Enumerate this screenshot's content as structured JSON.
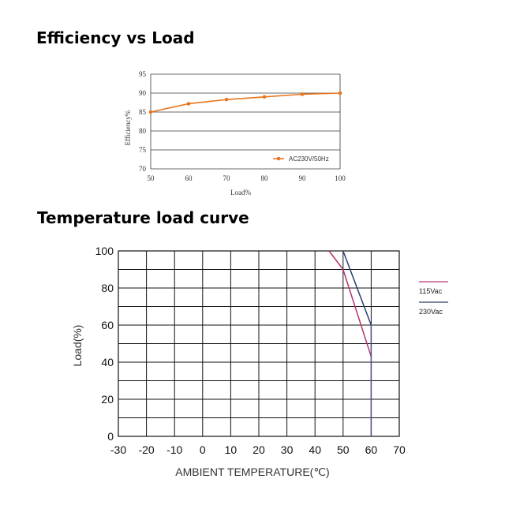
{
  "headings": {
    "efficiency": "Efficiency vs Load",
    "temperature": "Temperature load curve"
  },
  "chart_data": [
    {
      "type": "line",
      "title": "Efficiency vs Load",
      "xlabel": "Load%",
      "ylabel": "Efficiency%",
      "xlim": [
        50,
        100
      ],
      "ylim": [
        70,
        95
      ],
      "xticks": [
        50,
        60,
        70,
        80,
        90,
        100
      ],
      "yticks": [
        70,
        75,
        80,
        85,
        90,
        95
      ],
      "grid": "horizontal",
      "legend_position": "bottom-right",
      "series": [
        {
          "name": "AC230V/50Hz",
          "color": "#e8761e",
          "x": [
            50,
            60,
            70,
            80,
            90,
            100
          ],
          "y": [
            85,
            87.2,
            88.3,
            89,
            89.7,
            90
          ]
        }
      ]
    },
    {
      "type": "line",
      "title": "Temperature load curve",
      "xlabel": "AMBIENT TEMPERATURE(℃)",
      "ylabel": "Load(%)",
      "xlim": [
        -30,
        70
      ],
      "ylim": [
        0,
        100
      ],
      "xticks": [
        -30,
        -20,
        -10,
        0,
        10,
        20,
        30,
        40,
        50,
        60,
        70
      ],
      "yticks": [
        0,
        20,
        40,
        60,
        80,
        100
      ],
      "grid": "both",
      "legend_position": "right",
      "series": [
        {
          "name": "115Vac",
          "color": "#b5326e",
          "x": [
            45,
            50,
            60
          ],
          "y": [
            100,
            90,
            43
          ]
        },
        {
          "name": "230Vac",
          "color": "#2a3f6b",
          "x": [
            50,
            60
          ],
          "y": [
            100,
            60
          ]
        }
      ],
      "drop_line": {
        "x": 60,
        "y_from": 60,
        "y_to": 0,
        "color": "#4b4f8f"
      }
    }
  ]
}
